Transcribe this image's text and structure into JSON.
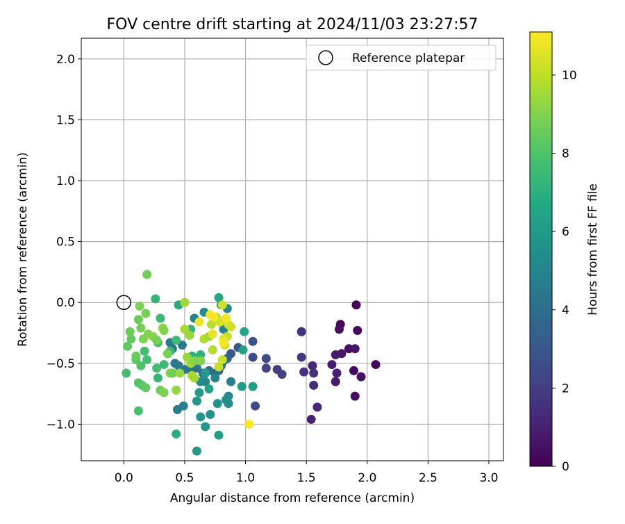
{
  "chart_data": {
    "type": "scatter",
    "title": "FOV centre drift starting at 2024/11/03 23:27:57",
    "xlabel": "Angular distance from reference (arcmin)",
    "ylabel": "Rotation from reference (arcmin)",
    "xlim": [
      -0.35,
      3.12
    ],
    "ylim": [
      -1.3,
      2.17
    ],
    "xticks": [
      0.0,
      0.5,
      1.0,
      1.5,
      2.0,
      2.5,
      3.0
    ],
    "xtick_labels": [
      "0.0",
      "0.5",
      "1.0",
      "1.5",
      "2.0",
      "2.5",
      "3.0"
    ],
    "yticks": [
      -1.0,
      -0.5,
      0.0,
      0.5,
      1.0,
      1.5,
      2.0
    ],
    "ytick_labels": [
      "−1.0",
      "−0.5",
      "0.0",
      "0.5",
      "1.0",
      "1.5",
      "2.0"
    ],
    "grid": true,
    "legend": {
      "placement": "top-right",
      "entries": [
        "Reference platepar"
      ]
    },
    "reference_point": {
      "x": 0.0,
      "y": 0.0,
      "label": "Reference platepar"
    },
    "colorbar": {
      "label": "Hours from first FF file",
      "colormap": "viridis",
      "range": [
        0,
        11.1
      ],
      "ticks": [
        0,
        2,
        4,
        6,
        8,
        10
      ],
      "tick_labels": [
        "0",
        "2",
        "4",
        "6",
        "8",
        "10"
      ]
    },
    "series": [
      {
        "points": [
          [
            1.91,
            -0.02,
            0.1
          ],
          [
            1.78,
            -0.18,
            0.2
          ],
          [
            1.92,
            -0.23,
            0.3
          ],
          [
            1.77,
            -0.22,
            0.4
          ],
          [
            1.85,
            -0.38,
            0.5
          ],
          [
            1.9,
            -0.38,
            0.6
          ],
          [
            1.79,
            -0.42,
            0.7
          ],
          [
            1.74,
            -0.43,
            0.8
          ],
          [
            1.71,
            -0.51,
            0.9
          ],
          [
            1.75,
            -0.58,
            1.0
          ],
          [
            1.89,
            -0.56,
            0.3
          ],
          [
            1.95,
            -0.61,
            0.5
          ],
          [
            1.74,
            -0.65,
            0.7
          ],
          [
            1.9,
            -0.77,
            0.4
          ],
          [
            2.07,
            -0.51,
            0.2
          ],
          [
            1.54,
            -0.96,
            1.0
          ],
          [
            1.59,
            -0.86,
            1.2
          ],
          [
            1.56,
            -0.68,
            1.4
          ],
          [
            1.56,
            -0.58,
            1.5
          ],
          [
            1.55,
            -0.52,
            1.3
          ],
          [
            1.48,
            -0.57,
            1.6
          ],
          [
            1.46,
            -0.24,
            1.6
          ],
          [
            1.46,
            -0.45,
            1.8
          ],
          [
            1.26,
            -0.55,
            2.0
          ],
          [
            1.3,
            -0.59,
            2.1
          ],
          [
            1.17,
            -0.54,
            2.2
          ],
          [
            1.17,
            -0.46,
            2.4
          ],
          [
            1.08,
            -0.85,
            2.5
          ],
          [
            1.06,
            -0.45,
            2.6
          ],
          [
            1.06,
            -0.32,
            2.8
          ],
          [
            0.94,
            -0.37,
            3.0
          ],
          [
            0.88,
            -0.42,
            3.2
          ],
          [
            0.85,
            -0.46,
            3.4
          ],
          [
            0.8,
            -0.52,
            3.5
          ],
          [
            0.78,
            -0.56,
            3.7
          ],
          [
            0.75,
            -0.58,
            3.9
          ],
          [
            0.7,
            -0.56,
            4.0
          ],
          [
            0.65,
            -0.58,
            4.1
          ],
          [
            0.6,
            -0.54,
            4.2
          ],
          [
            0.55,
            -0.56,
            4.3
          ],
          [
            0.5,
            -0.55,
            4.4
          ],
          [
            0.45,
            -0.52,
            4.5
          ],
          [
            0.42,
            -0.5,
            4.6
          ],
          [
            0.48,
            -0.35,
            4.6
          ],
          [
            0.4,
            -0.38,
            4.4
          ],
          [
            0.38,
            -0.33,
            4.5
          ],
          [
            0.44,
            -0.88,
            4.7
          ],
          [
            0.49,
            -0.85,
            4.8
          ],
          [
            0.82,
            -0.48,
            4.6
          ],
          [
            0.88,
            -0.65,
            4.8
          ],
          [
            0.75,
            -0.62,
            5.0
          ],
          [
            0.67,
            -0.65,
            5.0
          ],
          [
            0.63,
            -0.65,
            5.2
          ],
          [
            0.58,
            -0.13,
            4.9
          ],
          [
            0.82,
            -0.22,
            5.0
          ],
          [
            0.66,
            -0.08,
            5.3
          ],
          [
            0.8,
            -0.02,
            5.3
          ],
          [
            0.85,
            -0.05,
            5.1
          ],
          [
            0.86,
            -0.77,
            5.2
          ],
          [
            0.84,
            -0.8,
            5.4
          ],
          [
            0.86,
            -0.83,
            5.5
          ],
          [
            0.77,
            -0.83,
            5.6
          ],
          [
            0.71,
            -0.92,
            5.6
          ],
          [
            0.63,
            -0.94,
            5.8
          ],
          [
            0.67,
            -1.02,
            5.9
          ],
          [
            0.6,
            -1.22,
            6.0
          ],
          [
            0.78,
            -1.09,
            6.2
          ],
          [
            0.6,
            -0.81,
            5.9
          ],
          [
            0.62,
            -0.74,
            6.0
          ],
          [
            0.7,
            -0.71,
            6.3
          ],
          [
            0.97,
            -0.69,
            6.1
          ],
          [
            1.06,
            -0.69,
            6.2
          ],
          [
            0.98,
            -0.39,
            6.4
          ],
          [
            0.99,
            -0.24,
            6.5
          ],
          [
            0.67,
            -0.58,
            6.0
          ],
          [
            0.78,
            0.04,
            6.6
          ],
          [
            0.43,
            -1.08,
            7.0
          ],
          [
            0.45,
            -0.02,
            6.8
          ],
          [
            0.55,
            -0.22,
            7.2
          ],
          [
            0.56,
            -0.44,
            7.0
          ],
          [
            0.63,
            -0.43,
            7.1
          ],
          [
            0.28,
            -0.62,
            7.3
          ],
          [
            0.27,
            -0.54,
            7.6
          ],
          [
            0.33,
            -0.51,
            7.5
          ],
          [
            0.38,
            -0.4,
            7.4
          ],
          [
            0.43,
            -0.31,
            7.6
          ],
          [
            0.28,
            -0.33,
            7.8
          ],
          [
            0.3,
            -0.13,
            7.5
          ],
          [
            0.26,
            0.03,
            7.3
          ],
          [
            0.17,
            -0.4,
            7.7
          ],
          [
            0.19,
            -0.47,
            7.8
          ],
          [
            0.14,
            -0.52,
            8.0
          ],
          [
            0.1,
            -0.47,
            8.2
          ],
          [
            0.12,
            -0.66,
            8.1
          ],
          [
            0.15,
            -0.68,
            8.2
          ],
          [
            0.18,
            -0.7,
            8.3
          ],
          [
            0.12,
            -0.89,
            7.9
          ],
          [
            0.02,
            -0.58,
            7.8
          ],
          [
            0.03,
            -0.36,
            8.3
          ],
          [
            0.06,
            -0.3,
            8.4
          ],
          [
            0.1,
            -0.44,
            8.5
          ],
          [
            0.05,
            -0.24,
            8.6
          ],
          [
            0.12,
            -0.14,
            8.6
          ],
          [
            0.18,
            -0.09,
            8.8
          ],
          [
            0.13,
            -0.03,
            8.9
          ],
          [
            0.14,
            -0.21,
            8.7
          ],
          [
            0.16,
            -0.3,
            8.9
          ],
          [
            0.2,
            -0.26,
            9.0
          ],
          [
            0.24,
            -0.28,
            9.1
          ],
          [
            0.27,
            -0.31,
            8.8
          ],
          [
            0.32,
            -0.21,
            9.2
          ],
          [
            0.33,
            -0.23,
            9.0
          ],
          [
            0.19,
            0.23,
            8.7
          ],
          [
            0.36,
            -0.42,
            8.8
          ],
          [
            0.3,
            -0.72,
            8.7
          ],
          [
            0.33,
            -0.74,
            8.9
          ],
          [
            0.38,
            -0.58,
            9.1
          ],
          [
            0.4,
            -0.58,
            8.7
          ],
          [
            0.43,
            -0.72,
            9.3
          ],
          [
            0.46,
            -0.58,
            9.3
          ],
          [
            0.52,
            -0.45,
            9.4
          ],
          [
            0.55,
            -0.5,
            9.5
          ],
          [
            0.58,
            -0.48,
            9.1
          ],
          [
            0.5,
            -0.22,
            9.6
          ],
          [
            0.54,
            -0.27,
            9.4
          ],
          [
            0.5,
            0.0,
            9.5
          ],
          [
            0.56,
            -0.6,
            9.7
          ],
          [
            0.58,
            -0.62,
            9.6
          ],
          [
            0.63,
            -0.48,
            9.0
          ],
          [
            0.66,
            -0.3,
            9.8
          ],
          [
            0.7,
            -0.28,
            9.6
          ],
          [
            0.72,
            -0.18,
            9.9
          ],
          [
            0.76,
            -0.12,
            10.0
          ],
          [
            0.73,
            -0.39,
            9.8
          ],
          [
            0.78,
            -0.53,
            10.1
          ],
          [
            0.81,
            -0.47,
            10.2
          ],
          [
            0.83,
            -0.35,
            10.3
          ],
          [
            0.85,
            -0.28,
            10.1
          ],
          [
            0.79,
            -0.16,
            10.4
          ],
          [
            0.81,
            -0.02,
            10.2
          ],
          [
            0.86,
            -0.18,
            10.6
          ],
          [
            0.88,
            -0.2,
            10.3
          ],
          [
            0.82,
            -0.3,
            10.5
          ],
          [
            0.73,
            -0.26,
            10.7
          ],
          [
            0.62,
            -0.16,
            10.8
          ],
          [
            0.71,
            -0.1,
            10.9
          ],
          [
            0.74,
            -0.12,
            11.0
          ],
          [
            0.84,
            -0.13,
            10.9
          ],
          [
            1.03,
            -1.0,
            11.0
          ],
          [
            0.82,
            -0.33,
            11.0
          ]
        ]
      }
    ]
  }
}
